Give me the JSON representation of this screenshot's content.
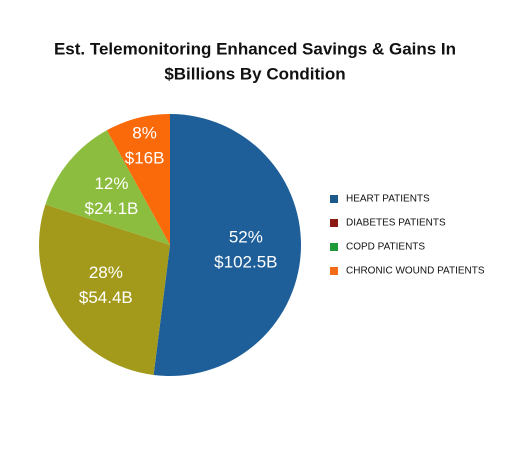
{
  "chart_data": {
    "type": "pie",
    "title": [
      "Est. Telemonitoring Enhanced Savings & Gains In",
      "$Billions By Condition"
    ],
    "categories": [
      "HEART PATIENTS",
      "DIABETES PATIENTS",
      "COPD PATIENTS",
      "CHRONIC WOUND PATIENTS"
    ],
    "values": [
      52,
      28,
      12,
      8
    ],
    "value_labels": [
      "52%",
      "28%",
      "12%",
      "8%"
    ],
    "amounts": [
      102.5,
      54.4,
      24.1,
      16
    ],
    "amount_labels": [
      "$102.5B",
      "$54.4B",
      "$24.1B",
      "$16B"
    ],
    "colors": [
      "#1f5f99",
      "#a39a1c",
      "#8dbd3e",
      "#fb6a0a"
    ],
    "legend_colors": [
      "#1d5a8a",
      "#8b1a12",
      "#1f9a38",
      "#f26b17"
    ]
  }
}
